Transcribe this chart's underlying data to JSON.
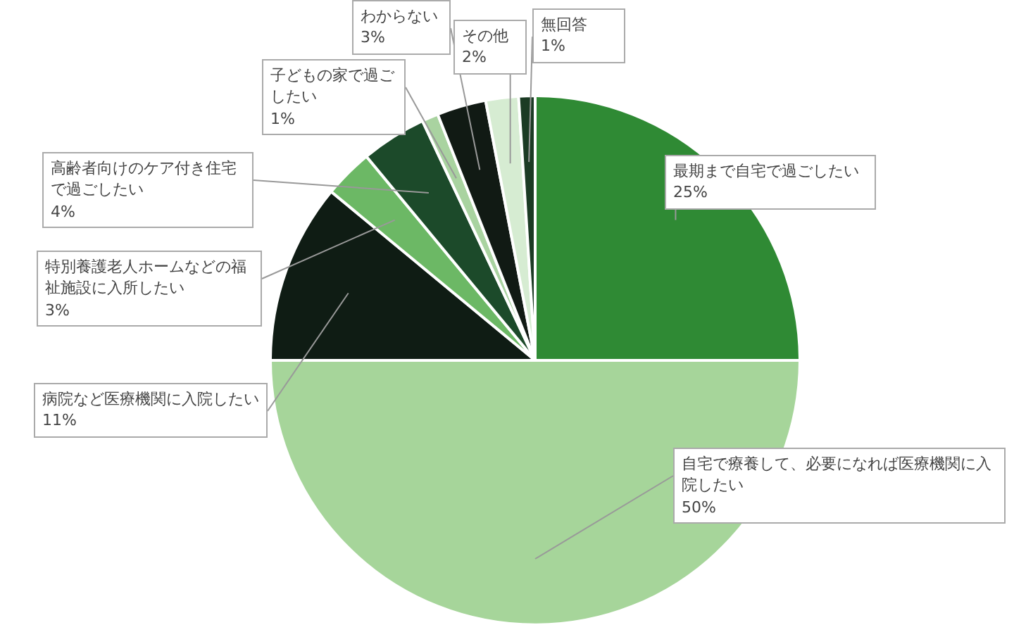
{
  "chart_data": {
    "type": "pie",
    "categories": [
      "最期まで自宅で過ごしたい",
      "自宅で療養して、必要になれば医療機関に入院したい",
      "病院など医療機関に入院したい",
      "特別養護老人ホームなどの福祉施設に入所したい",
      "高齢者向けのケア付き住宅で過ごしたい",
      "子どもの家で過ごしたい",
      "わからない",
      "その他",
      "無回答"
    ],
    "values": [
      25,
      50,
      11,
      3,
      4,
      1,
      3,
      2,
      1
    ],
    "colors": [
      "#2f8a34",
      "#a6d59a",
      "#0f1c14",
      "#6cb865",
      "#1c4a2a",
      "#a9d3a0",
      "#111a14",
      "#d6ecd2",
      "#1b3b24"
    ],
    "value_labels": [
      "25%",
      "50%",
      "11%",
      "3%",
      "4%",
      "1%",
      "3%",
      "2%",
      "1%"
    ]
  }
}
